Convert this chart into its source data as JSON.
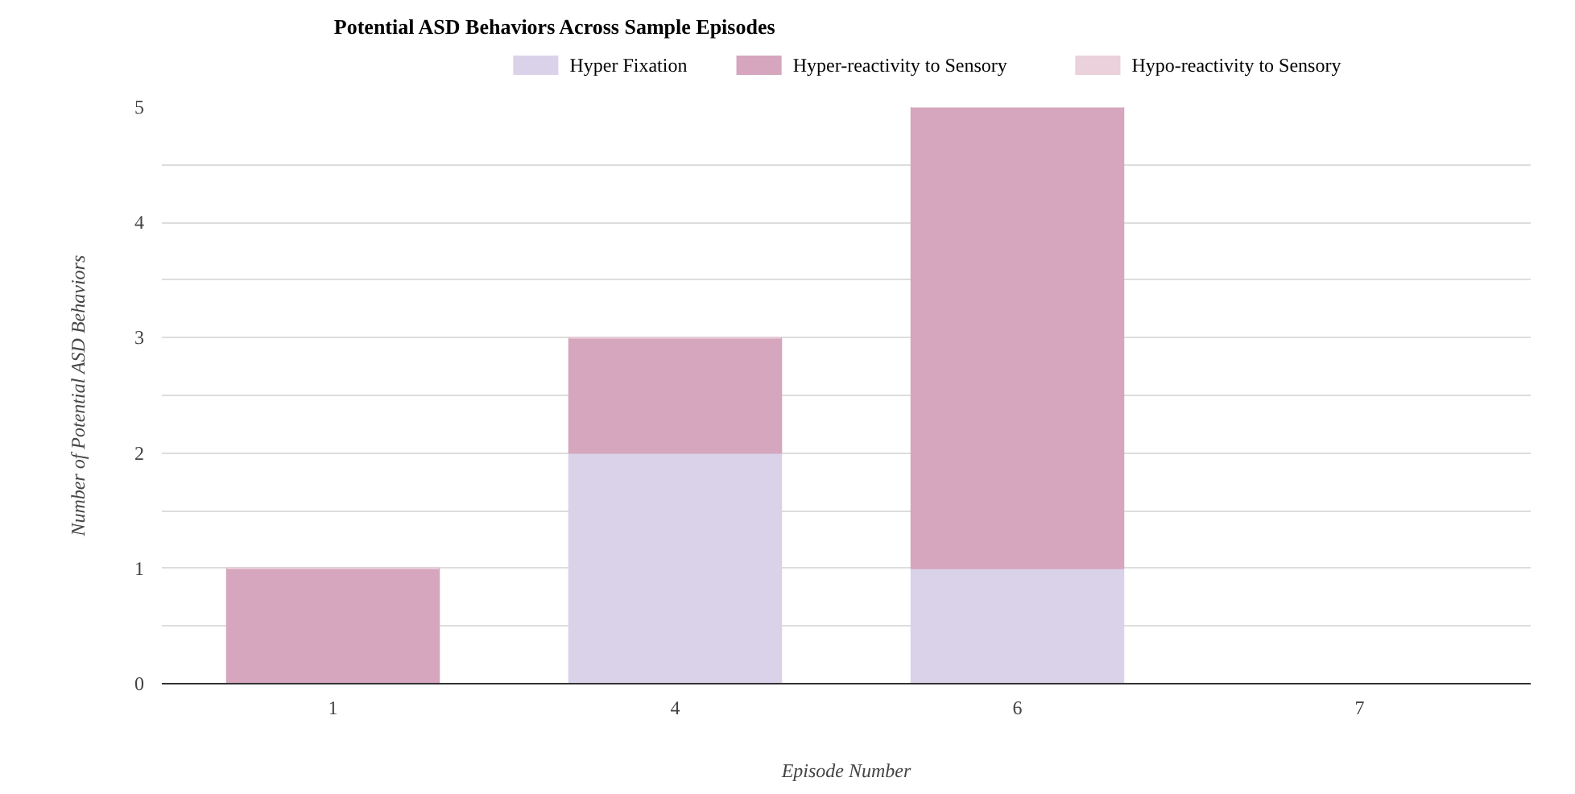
{
  "chart_data": {
    "type": "bar",
    "stacked": true,
    "title": "Potential ASD Behaviors Across Sample Episodes",
    "xlabel": "Episode Number",
    "ylabel": "Number of Potential ASD Behaviors",
    "categories": [
      "1",
      "4",
      "6",
      "7"
    ],
    "series": [
      {
        "name": "Hyper Fixation",
        "color": "#d9d2e9",
        "values": [
          0,
          2,
          1,
          0
        ]
      },
      {
        "name": "Hyper-reactivity to Sensory",
        "color": "#d5a6bd",
        "values": [
          1,
          1,
          4,
          0
        ]
      },
      {
        "name": "Hypo-reactivity to Sensory",
        "color": "#ead1dc",
        "values": [
          0,
          0,
          0,
          0
        ]
      }
    ],
    "ylim": [
      0,
      5
    ],
    "yticks": [
      0,
      {
        "value": 0.5,
        "label": null
      },
      1,
      {
        "value": 1.5,
        "label": null
      },
      2,
      {
        "value": 2.5,
        "label": null
      },
      3,
      {
        "value": 3.5,
        "label": null
      },
      4,
      {
        "value": 4.5,
        "label": null
      },
      5
    ],
    "grid": "y",
    "legend": "top"
  }
}
